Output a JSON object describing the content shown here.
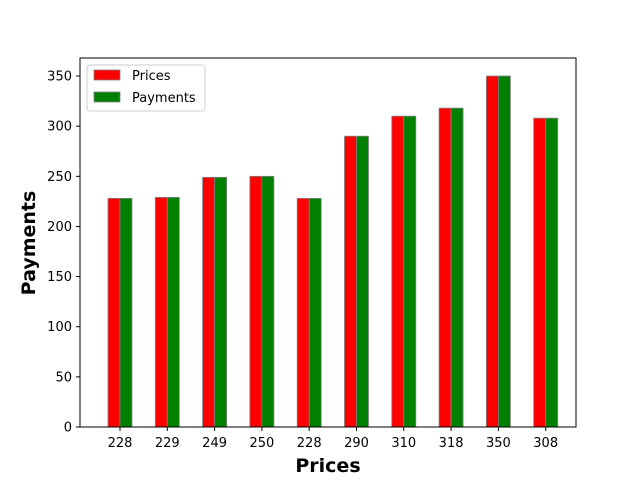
{
  "chart_data": {
    "type": "bar",
    "categories": [
      "228",
      "229",
      "249",
      "250",
      "228",
      "290",
      "310",
      "318",
      "350",
      "308"
    ],
    "series": [
      {
        "name": "Prices",
        "values": [
          228,
          229,
          249,
          250,
          228,
          290,
          310,
          318,
          350,
          308
        ],
        "color": "#ff0000"
      },
      {
        "name": "Payments",
        "values": [
          228,
          229,
          249,
          250,
          228,
          290,
          310,
          318,
          350,
          308
        ],
        "color": "#008000"
      }
    ],
    "title": "",
    "xlabel": "Prices",
    "ylabel": "Payments",
    "ylim": [
      0,
      368
    ],
    "yticks": [
      0,
      50,
      100,
      150,
      200,
      250,
      300,
      350
    ],
    "grid": false,
    "legend_position": "top-left",
    "bar_edge_color": "#808080"
  }
}
